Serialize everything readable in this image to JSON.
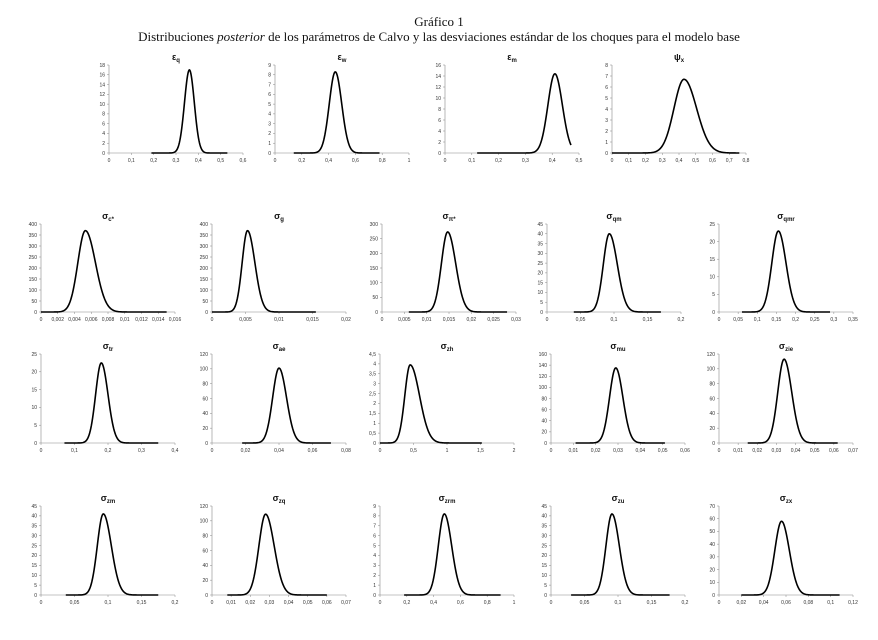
{
  "header": {
    "title": "Gráfico 1",
    "subtitle_pre": "Distribuciones ",
    "subtitle_em": "posterior",
    "subtitle_post": " de los parámetros de Calvo y las desviaciones estándar de los choques para el modelo base"
  },
  "chart_data": [
    {
      "type": "line",
      "sym": "ε",
      "sub": "q",
      "xlim": [
        0,
        0.6
      ],
      "xticks": [
        "0",
        "0,1",
        "0,2",
        "0,3",
        "0,4",
        "0,5",
        "0,6"
      ],
      "ylim": [
        0,
        18
      ],
      "yticks": [
        "0",
        "2",
        "4",
        "6",
        "8",
        "10",
        "12",
        "14",
        "16",
        "18"
      ],
      "mode": 0.36,
      "peak": 17,
      "sd_left": 0.022,
      "sd_right": 0.022,
      "support": [
        0.19,
        0.53
      ]
    },
    {
      "type": "line",
      "sym": "ε",
      "sub": "w",
      "xlim": [
        0,
        1
      ],
      "xticks": [
        "0",
        "0,2",
        "0,4",
        "0,6",
        "0,8",
        "1"
      ],
      "ylim": [
        0,
        9
      ],
      "yticks": [
        "0",
        "1",
        "2",
        "3",
        "4",
        "5",
        "6",
        "7",
        "8",
        "9"
      ],
      "mode": 0.45,
      "peak": 8.3,
      "sd_left": 0.045,
      "sd_right": 0.048,
      "support": [
        0.14,
        0.78
      ]
    },
    {
      "type": "line",
      "sym": "ε",
      "sub": "m",
      "xlim": [
        0,
        0.5
      ],
      "xticks": [
        "0",
        "0,1",
        "0,2",
        "0,3",
        "0,4",
        "0,5"
      ],
      "ylim": [
        0,
        16
      ],
      "yticks": [
        "0",
        "2",
        "4",
        "6",
        "8",
        "10",
        "12",
        "14",
        "16"
      ],
      "mode": 0.41,
      "peak": 14.4,
      "sd_left": 0.026,
      "sd_right": 0.028,
      "support": [
        0.12,
        0.47
      ]
    },
    {
      "type": "line",
      "sym": "ψ",
      "sub": "x",
      "xlim": [
        0,
        0.8
      ],
      "xticks": [
        "0",
        "0,1",
        "0,2",
        "0,3",
        "0,4",
        "0,5",
        "0,6",
        "0,7",
        "0,8"
      ],
      "ylim": [
        0,
        8
      ],
      "yticks": [
        "0",
        "1",
        "2",
        "3",
        "4",
        "5",
        "6",
        "7",
        "8"
      ],
      "mode": 0.43,
      "peak": 6.7,
      "sd_left": 0.06,
      "sd_right": 0.075,
      "support": [
        0,
        0.76
      ]
    },
    {
      "type": "line",
      "sym": "σ",
      "sub": "c*",
      "xlim": [
        0,
        0.016
      ],
      "xticks": [
        "0",
        "0,002",
        "0,004",
        "0,006",
        "0,008",
        "0,01",
        "0,012",
        "0,014",
        "0,016"
      ],
      "ylim": [
        0,
        400
      ],
      "yticks": [
        "0",
        "50",
        "100",
        "150",
        "200",
        "250",
        "300",
        "350",
        "400"
      ],
      "mode": 0.0053,
      "peak": 370,
      "sd_left": 0.0009,
      "sd_right": 0.0012,
      "support": [
        0,
        0.015
      ]
    },
    {
      "type": "line",
      "sym": "σ",
      "sub": "g",
      "xlim": [
        0,
        0.02
      ],
      "xticks": [
        "0",
        "0,005",
        "0,01",
        "0,015",
        "0,02"
      ],
      "ylim": [
        0,
        400
      ],
      "yticks": [
        "0",
        "50",
        "100",
        "150",
        "200",
        "250",
        "300",
        "350",
        "400"
      ],
      "mode": 0.0053,
      "peak": 370,
      "sd_left": 0.0008,
      "sd_right": 0.0011,
      "support": [
        0,
        0.0155
      ]
    },
    {
      "type": "line",
      "sym": "σ",
      "sub": "π*",
      "xlim": [
        0,
        0.03
      ],
      "xticks": [
        "0",
        "0,005",
        "0,01",
        "0,015",
        "0,02",
        "0,025",
        "0,03"
      ],
      "ylim": [
        0,
        300
      ],
      "yticks": [
        "0",
        "50",
        "100",
        "150",
        "200",
        "250",
        "300"
      ],
      "mode": 0.0147,
      "peak": 273,
      "sd_left": 0.0014,
      "sd_right": 0.0018,
      "support": [
        0.006,
        0.028
      ]
    },
    {
      "type": "line",
      "sym": "σ",
      "sub": "qm",
      "xlim": [
        0,
        0.2
      ],
      "xticks": [
        "0",
        "0,05",
        "0,1",
        "0,15",
        "0,2"
      ],
      "ylim": [
        0,
        45
      ],
      "yticks": [
        "0",
        "5",
        "10",
        "15",
        "20",
        "25",
        "30",
        "35",
        "40",
        "45"
      ],
      "mode": 0.093,
      "peak": 40,
      "sd_left": 0.009,
      "sd_right": 0.012,
      "support": [
        0.04,
        0.17
      ]
    },
    {
      "type": "line",
      "sym": "σ",
      "sub": "qmr",
      "xlim": [
        0,
        0.35
      ],
      "xticks": [
        "0",
        "0,05",
        "0,1",
        "0,15",
        "0,2",
        "0,25",
        "0,3",
        "0,35"
      ],
      "ylim": [
        0,
        25
      ],
      "yticks": [
        "0",
        "5",
        "10",
        "15",
        "20",
        "25"
      ],
      "mode": 0.155,
      "peak": 23,
      "sd_left": 0.017,
      "sd_right": 0.02,
      "support": [
        0.06,
        0.29
      ]
    },
    {
      "type": "line",
      "sym": "σ",
      "sub": "tr",
      "xlim": [
        0,
        0.4
      ],
      "xticks": [
        "0",
        "0,1",
        "0,2",
        "0,3",
        "0,4"
      ],
      "ylim": [
        0,
        25
      ],
      "yticks": [
        "0",
        "5",
        "10",
        "15",
        "20",
        "25"
      ],
      "mode": 0.18,
      "peak": 22.5,
      "sd_left": 0.017,
      "sd_right": 0.02,
      "support": [
        0.07,
        0.35
      ]
    },
    {
      "type": "line",
      "sym": "σ",
      "sub": "ae",
      "xlim": [
        0,
        0.08
      ],
      "xticks": [
        "0",
        "0,02",
        "0,04",
        "0,06",
        "0,08"
      ],
      "ylim": [
        0,
        120
      ],
      "yticks": [
        "0",
        "20",
        "40",
        "60",
        "80",
        "100",
        "120"
      ],
      "mode": 0.04,
      "peak": 101,
      "sd_left": 0.0038,
      "sd_right": 0.0045,
      "support": [
        0.018,
        0.071
      ]
    },
    {
      "type": "line",
      "sym": "σ",
      "sub": "zh",
      "xlim": [
        0,
        2
      ],
      "xticks": [
        "0",
        "0,5",
        "1",
        "1,5",
        "2"
      ],
      "ylim": [
        0,
        4.5
      ],
      "yticks": [
        "0",
        "0,5",
        "1",
        "1,5",
        "2",
        "2,5",
        "3",
        "3,5",
        "4",
        "4,5"
      ],
      "mode": 0.45,
      "peak": 3.95,
      "sd_left": 0.08,
      "sd_right": 0.14,
      "support": [
        0,
        1.52
      ]
    },
    {
      "type": "line",
      "sym": "σ",
      "sub": "mu",
      "xlim": [
        0,
        0.06
      ],
      "xticks": [
        "0",
        "0,01",
        "0,02",
        "0,03",
        "0,04",
        "0,05",
        "0,06"
      ],
      "ylim": [
        0,
        160
      ],
      "yticks": [
        "0",
        "20",
        "40",
        "60",
        "80",
        "100",
        "120",
        "140",
        "160"
      ],
      "mode": 0.029,
      "peak": 135,
      "sd_left": 0.0028,
      "sd_right": 0.0032,
      "support": [
        0.011,
        0.051
      ]
    },
    {
      "type": "line",
      "sym": "σ",
      "sub": "zie",
      "xlim": [
        0,
        0.07
      ],
      "xticks": [
        "0",
        "0,01",
        "0,02",
        "0,03",
        "0,04",
        "0,05",
        "0,06",
        "0,07"
      ],
      "ylim": [
        0,
        120
      ],
      "yticks": [
        "0",
        "20",
        "40",
        "60",
        "80",
        "100",
        "120"
      ],
      "mode": 0.034,
      "peak": 113,
      "sd_left": 0.0033,
      "sd_right": 0.004,
      "support": [
        0.015,
        0.062
      ]
    },
    {
      "type": "line",
      "sym": "σ",
      "sub": "zm",
      "xlim": [
        0,
        0.2
      ],
      "xticks": [
        "0",
        "0,05",
        "0,1",
        "0,15",
        "0,2"
      ],
      "ylim": [
        0,
        45
      ],
      "yticks": [
        "0",
        "5",
        "10",
        "15",
        "20",
        "25",
        "30",
        "35",
        "40",
        "45"
      ],
      "mode": 0.093,
      "peak": 41,
      "sd_left": 0.009,
      "sd_right": 0.012,
      "support": [
        0.037,
        0.175
      ]
    },
    {
      "type": "line",
      "sym": "σ",
      "sub": "zq",
      "xlim": [
        0,
        0.07
      ],
      "xticks": [
        "0",
        "0,01",
        "0,02",
        "0,03",
        "0,04",
        "0,05",
        "0,06",
        "0,07"
      ],
      "ylim": [
        0,
        120
      ],
      "yticks": [
        "0",
        "20",
        "40",
        "60",
        "80",
        "100",
        "120"
      ],
      "mode": 0.028,
      "peak": 109,
      "sd_left": 0.0035,
      "sd_right": 0.0045,
      "support": [
        0.008,
        0.06
      ]
    },
    {
      "type": "line",
      "sym": "σ",
      "sub": "zrm",
      "xlim": [
        0,
        1
      ],
      "xticks": [
        "0",
        "0,2",
        "0,4",
        "0,6",
        "0,8",
        "1"
      ],
      "ylim": [
        0,
        9
      ],
      "yticks": [
        "0",
        "1",
        "2",
        "3",
        "4",
        "5",
        "6",
        "7",
        "8",
        "9"
      ],
      "mode": 0.48,
      "peak": 8.2,
      "sd_left": 0.045,
      "sd_right": 0.055,
      "support": [
        0.18,
        0.9
      ]
    },
    {
      "type": "line",
      "sym": "σ",
      "sub": "zu",
      "xlim": [
        0,
        0.2
      ],
      "xticks": [
        "0",
        "0,05",
        "0,1",
        "0,15",
        "0,2"
      ],
      "ylim": [
        0,
        45
      ],
      "yticks": [
        "0",
        "5",
        "10",
        "15",
        "20",
        "25",
        "30",
        "35",
        "40",
        "45"
      ],
      "mode": 0.091,
      "peak": 41,
      "sd_left": 0.009,
      "sd_right": 0.011,
      "support": [
        0.03,
        0.177
      ]
    },
    {
      "type": "line",
      "sym": "σ",
      "sub": "zx",
      "xlim": [
        0,
        0.12
      ],
      "xticks": [
        "0",
        "0,02",
        "0,04",
        "0,06",
        "0,08",
        "0,1",
        "0,12"
      ],
      "ylim": [
        0,
        70
      ],
      "yticks": [
        "0",
        "10",
        "20",
        "30",
        "40",
        "50",
        "60",
        "70"
      ],
      "mode": 0.056,
      "peak": 58,
      "sd_left": 0.006,
      "sd_right": 0.007,
      "support": [
        0.02,
        0.108
      ]
    }
  ]
}
